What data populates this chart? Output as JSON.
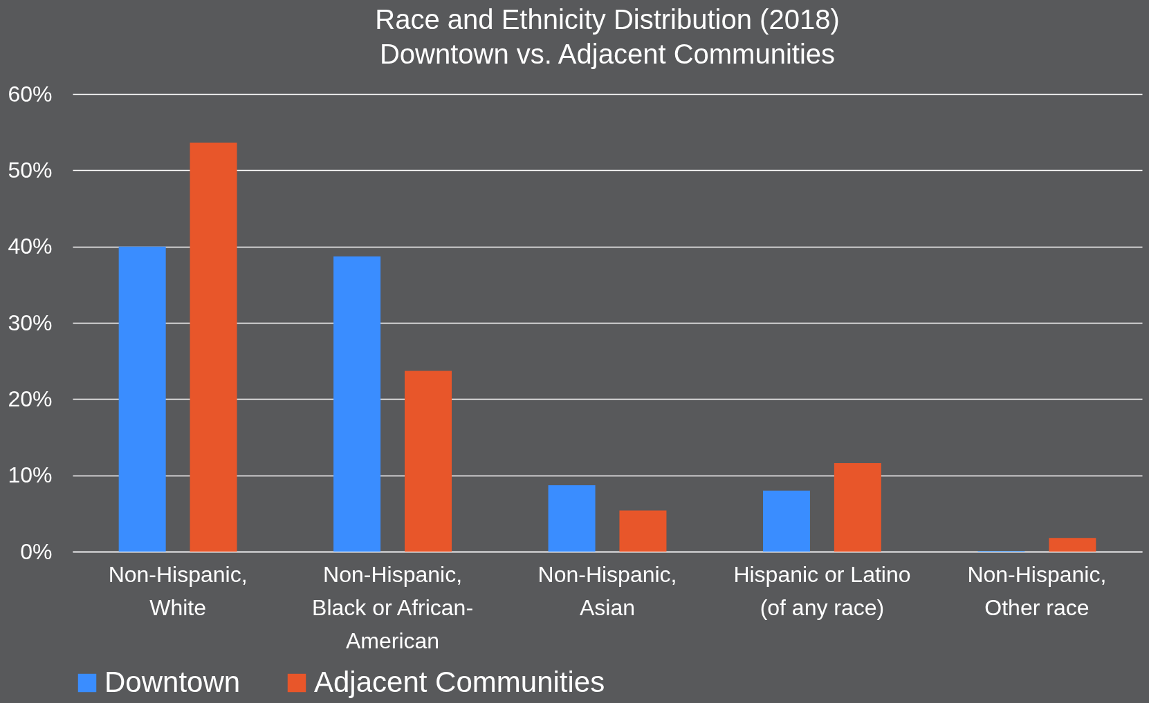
{
  "chart_data": {
    "type": "bar",
    "title": "Race and Ethnicity Distribution (2018)",
    "subtitle": "Downtown vs. Adjacent Communities",
    "categories": [
      "Non-Hispanic, White",
      "Non-Hispanic, Black or African-American",
      "Non-Hispanic, Asian",
      "Hispanic or Latino (of any race)",
      "Non-Hispanic, Other race"
    ],
    "series": [
      {
        "name": "Downtown",
        "color": "#3a8dff",
        "values": [
          40.0,
          38.7,
          8.7,
          8.0,
          0.1
        ]
      },
      {
        "name": "Adjacent Communities",
        "color": "#e8562a",
        "values": [
          53.6,
          23.7,
          5.4,
          11.6,
          1.8
        ]
      }
    ],
    "ylim": [
      0,
      60
    ],
    "yticks": [
      {
        "value": 0,
        "label": "0%"
      },
      {
        "value": 10,
        "label": "10%"
      },
      {
        "value": 20,
        "label": "20%"
      },
      {
        "value": 30,
        "label": "30%"
      },
      {
        "value": 40,
        "label": "40%"
      },
      {
        "value": 50,
        "label": "50%"
      },
      {
        "value": 60,
        "label": "60%"
      }
    ],
    "grid": "y",
    "legend": "bottom"
  }
}
